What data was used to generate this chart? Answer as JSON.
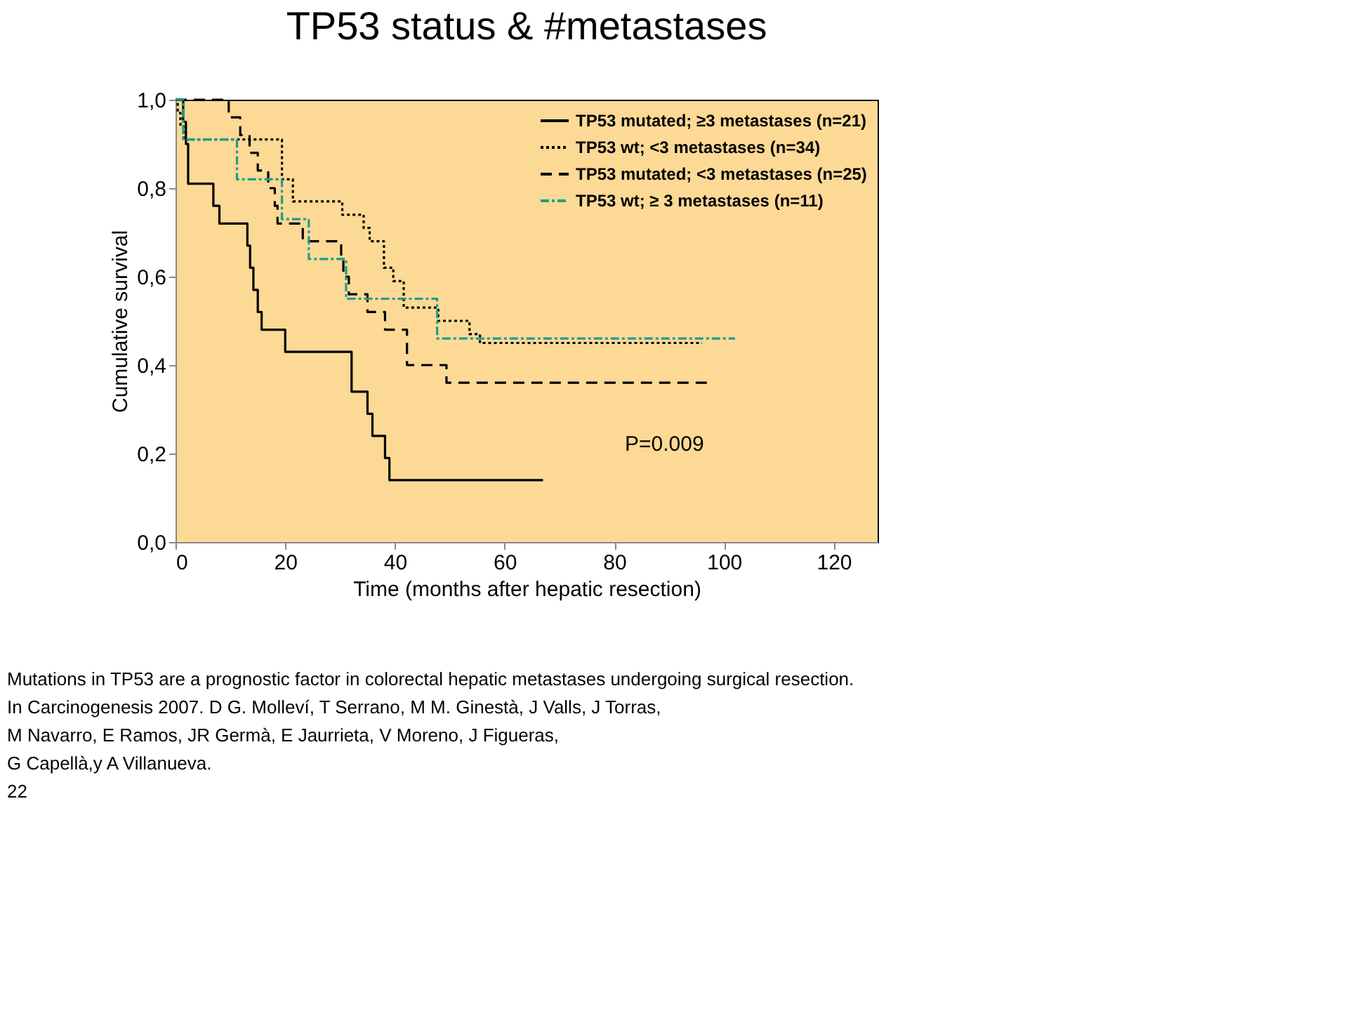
{
  "chart_data": {
    "type": "step",
    "title": "TP53 status & #metastases",
    "xlabel": "Time (months after hepatic resection)",
    "ylabel": "Cumulative survival",
    "xlim": [
      0,
      128
    ],
    "xticks": [
      0,
      20,
      40,
      60,
      80,
      100,
      120
    ],
    "ylim": [
      0,
      1
    ],
    "yticks": [
      {
        "value": 0,
        "label": "0,0"
      },
      {
        "value": 0.2,
        "label": "0,2"
      },
      {
        "value": 0.4,
        "label": "0,4"
      },
      {
        "value": 0.6,
        "label": "0,6"
      },
      {
        "value": 0.8,
        "label": "0,8"
      },
      {
        "value": 1,
        "label": "1,0"
      }
    ],
    "grid": false,
    "legend": "top right",
    "marker": "none",
    "series": [
      {
        "name": "TP53 mutated;  ≥3 metastases (n=21)",
        "color": "#000000",
        "line_style": "solid",
        "x": [
          0,
          1.4,
          1.9,
          2.3,
          6.9,
          8.0,
          13.1,
          13.6,
          14.2,
          15.0,
          15.7,
          20,
          32.1,
          35,
          35.9,
          38.2,
          39,
          67
        ],
        "values": [
          1,
          0.95,
          0.9,
          0.81,
          0.76,
          0.72,
          0.67,
          0.62,
          0.57,
          0.52,
          0.48,
          0.43,
          0.34,
          0.29,
          0.24,
          0.19,
          0.14,
          0.14
        ]
      },
      {
        "name": "TP53 wt;  <3 metastases (n=34)",
        "color": "#000000",
        "line_style": "dotted",
        "x": [
          0,
          0.4,
          0.9,
          1.5,
          19.4,
          21.4,
          30.4,
          34.3,
          35.4,
          38,
          39.7,
          41.6,
          47.9,
          53.6,
          55.5,
          96
        ],
        "values": [
          1,
          0.97,
          0.94,
          0.91,
          0.82,
          0.77,
          0.74,
          0.71,
          0.68,
          0.62,
          0.59,
          0.53,
          0.5,
          0.47,
          0.45,
          0.45
        ]
      },
      {
        "name": "TP53 mutated;  <3 metastases (n=25)",
        "color": "#000000",
        "line_style": "dashed",
        "x": [
          0,
          9.7,
          11.8,
          13.5,
          15,
          16.9,
          18.1,
          18.6,
          23.2,
          30.2,
          30.6,
          31.6,
          35,
          38.2,
          42.2,
          49.4,
          97
        ],
        "values": [
          1,
          0.96,
          0.92,
          0.88,
          0.84,
          0.8,
          0.76,
          0.72,
          0.68,
          0.64,
          0.6,
          0.56,
          0.52,
          0.48,
          0.4,
          0.36,
          0.36
        ]
      },
      {
        "name": "TP53 wt; ≥ 3 metastases (n=11)",
        "color": "#1a9e8f",
        "line_style": "dashdot",
        "x": [
          0,
          1.4,
          11.2,
          19.4,
          24.3,
          31.1,
          47.7,
          102
        ],
        "values": [
          1,
          0.91,
          0.82,
          0.73,
          0.64,
          0.55,
          0.46,
          0.46
        ]
      }
    ],
    "annotations": [
      "P=0.009",
      "Mutations in TP53 are a prognostic factor in colorectal hepatic metastases undergoing surgical resection.",
      "In Carcinogenesis 2007. D G. Molleví, T Serrano, M M. Ginestà, J Valls, J Torras,",
      "M Navarro, E Ramos, JR Germà, E Jaurrieta, V Moreno, J Figueras,",
      "G Capellà,y A Villanueva.",
      "22"
    ]
  }
}
